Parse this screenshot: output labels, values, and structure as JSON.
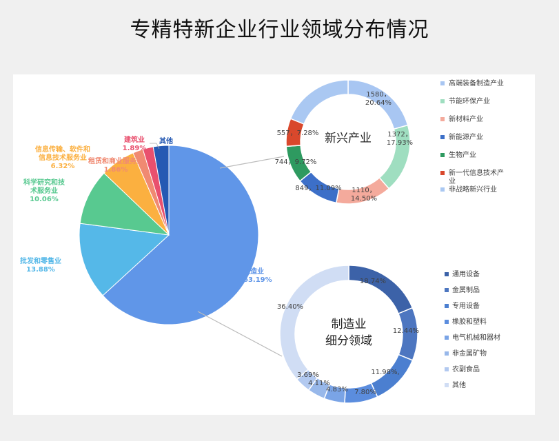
{
  "title": "专精特新企业行业领域分布情况",
  "chart_data": [
    {
      "type": "pie",
      "slices": [
        {
          "name": "制造业",
          "value": 63.19,
          "pct": "63.19%",
          "color": "#6096e8"
        },
        {
          "name": "批发和零售业",
          "value": 13.88,
          "pct": "13.88%",
          "color": "#55b8e8"
        },
        {
          "name": "科学研究和技术服务业",
          "value": 10.06,
          "pct": "10.06%",
          "color": "#58c990"
        },
        {
          "name": "信息传输、软件和信息技术服务业",
          "value": 6.32,
          "pct": "6.32%",
          "color": "#fbb040"
        },
        {
          "name": "租赁和商业服务业",
          "value": 1.86,
          "pct": "1.86%",
          "color": "#f08a72"
        },
        {
          "name": "建筑业",
          "value": 1.89,
          "pct": "1.89%",
          "color": "#e9506e"
        },
        {
          "name": "其他",
          "value": 2.8,
          "pct": "",
          "color": "#2559b3"
        }
      ]
    },
    {
      "type": "pie",
      "center_label": "新兴产业",
      "slices": [
        {
          "name": "高端装备制造产业",
          "value": 1580,
          "pct": "20.64%",
          "color": "#a8c6f2"
        },
        {
          "name": "节能环保产业",
          "value": 1372,
          "pct": "17.93%",
          "color": "#9fdec0"
        },
        {
          "name": "新材料产业",
          "value": 1110,
          "pct": "14.50%",
          "color": "#f4aa9c"
        },
        {
          "name": "新能源产业",
          "value": 849,
          "pct": "11.09%",
          "color": "#3c6fc8"
        },
        {
          "name": "生物产业",
          "value": 744,
          "pct": "9.72%",
          "color": "#2e9a60"
        },
        {
          "name": "新一代信息技术产业",
          "value": 557,
          "pct": "7.28%",
          "color": "#d9482c"
        },
        {
          "name": "非战略新兴行业",
          "value": 1444,
          "pct": "",
          "color": "#aac8f2"
        }
      ],
      "legend": [
        "高端装备制造产业",
        "节能环保产业",
        "新材料产业",
        "新能源产业",
        "生物产业",
        "新一代信息技术产业",
        "非战略新兴行业"
      ]
    },
    {
      "type": "pie",
      "center_label_line1": "制造业",
      "center_label_line2": "细分领域",
      "slices": [
        {
          "name": "通用设备",
          "value": 18.74,
          "pct": "18.74%",
          "color": "#3c62a8"
        },
        {
          "name": "金属制品",
          "value": 12.44,
          "pct": "12.44%",
          "color": "#4d76c0"
        },
        {
          "name": "专用设备",
          "value": 11.98,
          "pct": "11.98%,",
          "color": "#4b7fd0"
        },
        {
          "name": "橡胶和塑料",
          "value": 7.8,
          "pct": "7.80%",
          "color": "#5b8dde"
        },
        {
          "name": "电气机械和器材",
          "value": 4.83,
          "pct": "4.83%",
          "color": "#7aa4e6"
        },
        {
          "name": "非金属矿物",
          "value": 4.11,
          "pct": "4.11%",
          "color": "#98b8ea"
        },
        {
          "name": "农副食品",
          "value": 3.69,
          "pct": "3.69%",
          "color": "#b2c9f0"
        },
        {
          "name": "其他",
          "value": 36.4,
          "pct": "36.40%",
          "color": "#d0ddf4"
        }
      ],
      "legend": [
        "通用设备",
        "金属制品",
        "专用设备",
        "橡胶和塑料",
        "电气机械和器材",
        "非金属矿物",
        "农副食品",
        "其他"
      ]
    }
  ]
}
